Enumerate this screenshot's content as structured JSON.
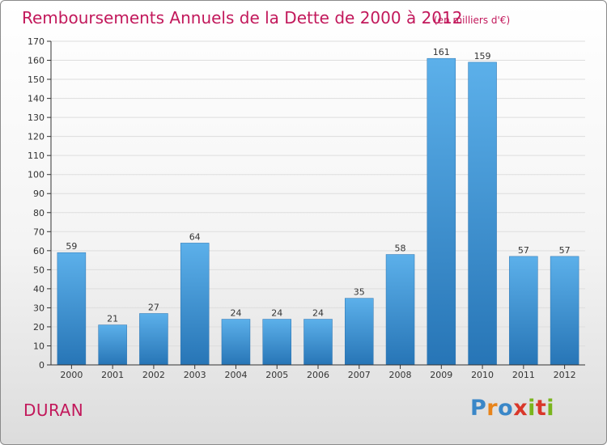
{
  "chart_data": {
    "type": "bar",
    "title": "Remboursements Annuels de la Dette de 2000 à 2012",
    "subtitle": "(en milliers d'€)",
    "categories": [
      "2000",
      "2001",
      "2002",
      "2003",
      "2004",
      "2005",
      "2006",
      "2007",
      "2008",
      "2009",
      "2010",
      "2011",
      "2012"
    ],
    "values": [
      59,
      21,
      27,
      64,
      24,
      24,
      24,
      35,
      58,
      161,
      159,
      57,
      57
    ],
    "ylim": [
      0,
      170
    ],
    "yticks": [
      0,
      10,
      20,
      30,
      40,
      50,
      60,
      70,
      80,
      90,
      100,
      110,
      120,
      130,
      140,
      150,
      160,
      170
    ],
    "grid": true,
    "legend": "none",
    "bar_color": "#3d8fd4",
    "bar_color_top": "#5cb0ea",
    "bar_color_bottom": "#2775b6"
  },
  "footer": {
    "commune": "DURAN",
    "brand": [
      "P",
      "r",
      "o",
      "x",
      "i",
      "t",
      "i"
    ],
    "brand_colors": [
      "#3a87c8",
      "#e8841a",
      "#3a87c8",
      "#d9372a",
      "#7ab51d",
      "#d9372a",
      "#7ab51d"
    ]
  }
}
